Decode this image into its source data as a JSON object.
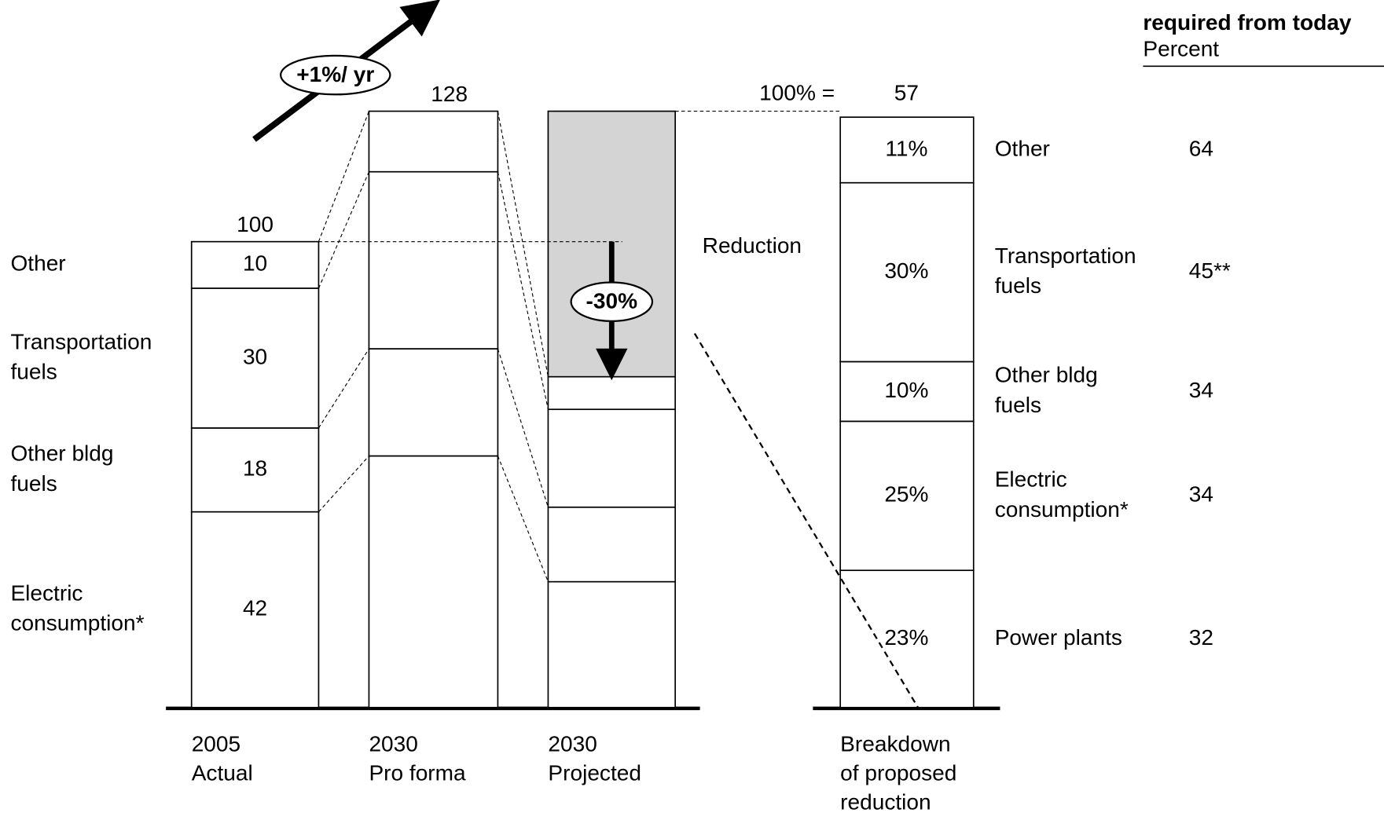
{
  "chart_data": {
    "type": "bar",
    "categories": [
      [
        "2005",
        "Actual"
      ],
      [
        "2030",
        "Pro forma"
      ],
      [
        "2030",
        "Projected"
      ]
    ],
    "series": [
      {
        "name": [
          "Electric",
          "consumption*"
        ],
        "values": [
          42,
          54,
          27
        ]
      },
      {
        "name": [
          "Other bldg",
          "fuels"
        ],
        "values": [
          18,
          23,
          16
        ]
      },
      {
        "name": [
          "Transportation",
          "fuels"
        ],
        "values": [
          30,
          38,
          21
        ]
      },
      {
        "name": [
          "Other"
        ],
        "values": [
          10,
          13,
          7
        ]
      }
    ],
    "show_values": [
      true,
      false,
      false
    ],
    "totals": [
      100,
      128,
      null
    ],
    "ylim": [
      0,
      128
    ],
    "color": "#ffffff",
    "growth": "+1%/ yr",
    "change": "-30%",
    "reduction": {
      "label": "Reduction",
      "value": 57,
      "prefix": "100% =",
      "color": "#d4d4d4"
    },
    "breakdown": {
      "title": [
        "Breakdown",
        "of proposed",
        "reduction"
      ],
      "names": [
        [
          "Power plants"
        ],
        [
          "Electric",
          "consumption*"
        ],
        [
          "Other bldg",
          "fuels"
        ],
        [
          "Transportation",
          "fuels"
        ],
        [
          "Other"
        ]
      ],
      "values": [
        23,
        25,
        10,
        30,
        11
      ],
      "value_labels": [
        "23%",
        "25%",
        "10%",
        "30%",
        "11%"
      ],
      "ylim": [
        0,
        100
      ]
    },
    "required": {
      "title": [
        "required from today",
        "Percent"
      ],
      "values": [
        32,
        34,
        34,
        45,
        64
      ],
      "value_labels": [
        "32",
        "34",
        "34",
        "45**",
        "64"
      ]
    }
  }
}
